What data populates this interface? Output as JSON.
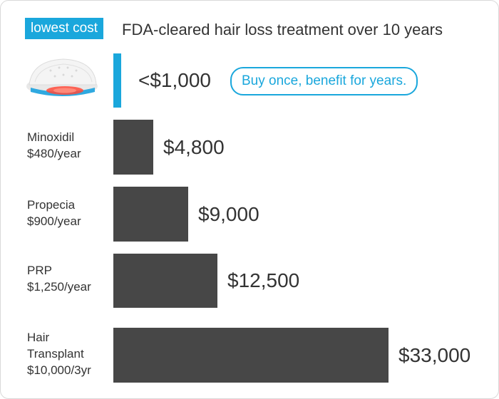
{
  "badge": "lowest cost",
  "headline": "FDA-cleared hair loss treatment over 10 years",
  "highlight_note": "Buy once, benefit for years.",
  "colors": {
    "accent": "#1aa7dc",
    "bar": "#474747",
    "text": "#333333"
  },
  "device_icon": "laser-cap-device-image",
  "chart_data": {
    "type": "bar",
    "orientation": "horizontal",
    "title": "FDA-cleared hair loss treatment over 10 years",
    "xlabel": "",
    "ylabel": "",
    "grid": false,
    "categories": [
      [
        "",
        ""
      ],
      [
        "Minoxidil",
        "$480/year"
      ],
      [
        "Propecia",
        "$900/year"
      ],
      [
        "PRP",
        "$1,250/year"
      ],
      [
        "Hair",
        "Transplant",
        "$10,000/3yr"
      ]
    ],
    "values": [
      1000,
      4800,
      9000,
      12500,
      33000
    ],
    "value_labels": [
      "<$1,000",
      "$4,800",
      "$9,000",
      "$12,500",
      "$33,000"
    ],
    "highlight_index": 0
  }
}
